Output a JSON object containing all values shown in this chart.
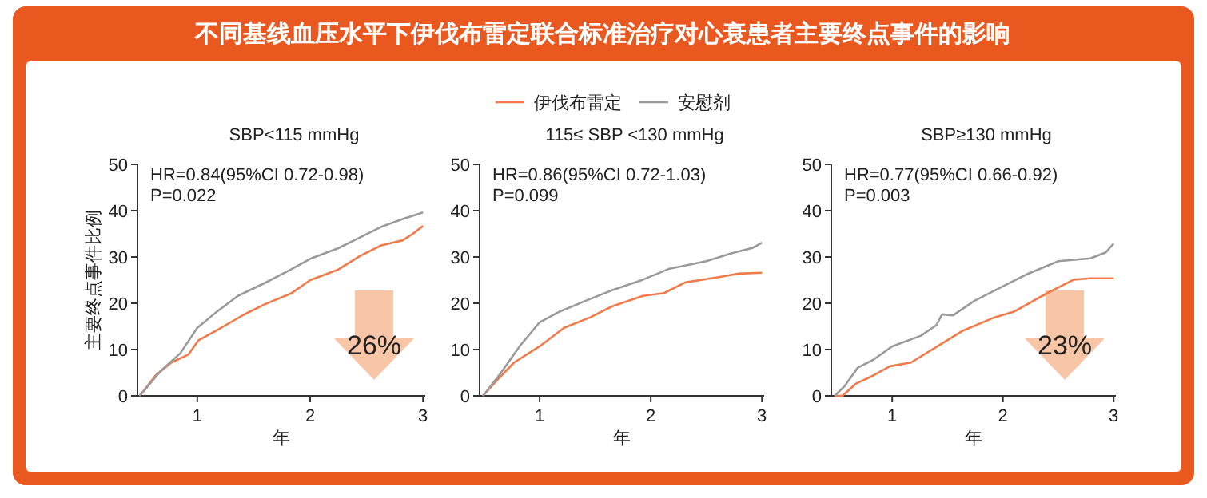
{
  "chart_data": [
    {
      "type": "line",
      "title": "不同基线血压水平下伊伐布雷定联合标准治疗对心衰患者主要终点事件的影响",
      "subtitle": "SBP<115 mmHg",
      "xlabel": "年",
      "ylabel": "主要终点事件比例",
      "xlim": [
        0.47,
        3.02
      ],
      "ylim": [
        0,
        50
      ],
      "xticks": [
        1,
        2,
        3
      ],
      "yticks": [
        0,
        10,
        20,
        30,
        40,
        50
      ],
      "legend": false,
      "grid": false,
      "marker": "none",
      "line_style": "solid",
      "annotations": [
        "HR=0.84(95%CI 0.72-0.98)",
        "P=0.022",
        "26%"
      ],
      "series": [
        {
          "color": "#f07a4a",
          "x": [
            0.49,
            0.63,
            0.77,
            0.92,
            1.01,
            1.17,
            1.41,
            1.6,
            1.83,
            2.0,
            2.25,
            2.44,
            2.63,
            2.82,
            2.91,
            3.0
          ],
          "values": [
            0,
            4.4,
            7.2,
            8.9,
            12.0,
            14.1,
            17.5,
            19.8,
            22.1,
            25.0,
            27.3,
            30.2,
            32.5,
            33.6,
            35.0,
            36.7
          ]
        },
        {
          "color": "#9a9a9a",
          "x": [
            0.49,
            0.68,
            0.85,
            1.0,
            1.17,
            1.36,
            1.6,
            1.83,
            2.0,
            2.25,
            2.44,
            2.63,
            2.82,
            3.0
          ],
          "values": [
            0,
            5.5,
            9.2,
            14.7,
            18.1,
            21.6,
            24.4,
            27.3,
            29.6,
            31.9,
            34.2,
            36.5,
            38.2,
            39.6
          ]
        }
      ]
    },
    {
      "type": "line",
      "subtitle": "115≤ SBP <130 mmHg",
      "xlabel": "年",
      "xlim": [
        0.46,
        3.02
      ],
      "ylim": [
        0,
        50
      ],
      "xticks": [
        1,
        2,
        3
      ],
      "yticks": [
        0,
        10,
        20,
        30,
        40,
        50
      ],
      "legend": "top",
      "grid": false,
      "marker": "none",
      "line_style": "solid",
      "annotations": [
        "HR=0.86(95%CI 0.72-1.03)",
        "P=0.099"
      ],
      "series": [
        {
          "name": "伊伐布雷定",
          "color": "#f07a4a",
          "x": [
            0.49,
            0.61,
            0.77,
            1.0,
            1.22,
            1.46,
            1.65,
            1.93,
            2.12,
            2.31,
            2.6,
            2.79,
            3.0
          ],
          "values": [
            0,
            3.2,
            7.2,
            10.7,
            14.7,
            17.0,
            19.3,
            21.6,
            22.2,
            24.5,
            25.6,
            26.4,
            26.6
          ]
        },
        {
          "name": "安慰剂",
          "color": "#9a9a9a",
          "x": [
            0.49,
            0.65,
            0.82,
            1.0,
            1.18,
            1.41,
            1.65,
            1.93,
            2.16,
            2.5,
            2.73,
            2.92,
            3.0
          ],
          "values": [
            0,
            4.9,
            10.7,
            15.9,
            18.2,
            20.5,
            22.8,
            25.1,
            27.4,
            29.1,
            30.8,
            32.0,
            33.1
          ]
        }
      ]
    },
    {
      "type": "line",
      "subtitle": "SBP≥130 mmHg",
      "xlabel": "年",
      "xlim": [
        0.45,
        3.02
      ],
      "ylim": [
        0,
        50
      ],
      "xticks": [
        1,
        2,
        3
      ],
      "yticks": [
        0,
        10,
        20,
        30,
        40,
        50
      ],
      "legend": false,
      "grid": false,
      "marker": "none",
      "line_style": "solid",
      "annotations": [
        "HR=0.77(95%CI 0.66-0.92)",
        "P=0.003",
        "23%"
      ],
      "series": [
        {
          "color": "#f07a4a",
          "x": [
            0.48,
            0.55,
            0.67,
            0.83,
            0.98,
            1.17,
            1.45,
            1.64,
            1.93,
            2.1,
            2.4,
            2.64,
            2.79,
            3.0
          ],
          "values": [
            0,
            0,
            2.6,
            4.4,
            6.4,
            7.2,
            11.3,
            14.1,
            17.0,
            18.2,
            22.2,
            25.1,
            25.4,
            25.4
          ]
        },
        {
          "color": "#9a9a9a",
          "x": [
            0.48,
            0.57,
            0.69,
            0.83,
            1.0,
            1.26,
            1.4,
            1.45,
            1.55,
            1.74,
            2.02,
            2.21,
            2.5,
            2.79,
            2.93,
            3.0
          ],
          "values": [
            0,
            2.1,
            6.1,
            7.8,
            10.7,
            13.0,
            15.3,
            17.6,
            17.4,
            20.5,
            23.9,
            26.2,
            29.1,
            29.7,
            31.0,
            32.9
          ]
        }
      ]
    }
  ]
}
